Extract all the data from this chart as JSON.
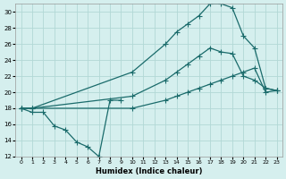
{
  "xlabel": "Humidex (Indice chaleur)",
  "background_color": "#d5efee",
  "grid_color": "#b2d8d6",
  "line_color": "#1a6b6b",
  "xlim": [
    -0.5,
    23.5
  ],
  "ylim": [
    12,
    31
  ],
  "xticks": [
    0,
    1,
    2,
    3,
    4,
    5,
    6,
    7,
    8,
    9,
    10,
    11,
    12,
    13,
    14,
    15,
    16,
    17,
    18,
    19,
    20,
    21,
    22,
    23
  ],
  "yticks": [
    12,
    14,
    16,
    18,
    20,
    22,
    24,
    26,
    28,
    30
  ],
  "line1_x": [
    0,
    1,
    2,
    3,
    4,
    5,
    6,
    7,
    8,
    9
  ],
  "line1_y": [
    18,
    17.5,
    17.5,
    15.8,
    15.3,
    13.8,
    13.2,
    12.0,
    19.0,
    19.0
  ],
  "line2_x": [
    0,
    1,
    10,
    13,
    14,
    15,
    16,
    17,
    18,
    19,
    20,
    21,
    22,
    23
  ],
  "line2_y": [
    18,
    18,
    22.5,
    26.0,
    27.5,
    28.5,
    29.5,
    31.0,
    31.0,
    30.5,
    27.0,
    25.5,
    20.5,
    20.2
  ],
  "line3_x": [
    0,
    1,
    10,
    13,
    14,
    15,
    16,
    17,
    18,
    19,
    20,
    21,
    22,
    23
  ],
  "line3_y": [
    18,
    18,
    19.5,
    21.5,
    22.5,
    23.5,
    24.5,
    25.5,
    25.0,
    24.8,
    22.0,
    21.5,
    20.5,
    20.2
  ],
  "line4_x": [
    0,
    1,
    10,
    13,
    14,
    15,
    16,
    17,
    18,
    19,
    20,
    21,
    22,
    23
  ],
  "line4_y": [
    18,
    18,
    18.0,
    19.0,
    19.5,
    20.0,
    20.5,
    21.0,
    21.5,
    22.0,
    22.5,
    23.0,
    20.0,
    20.2
  ]
}
